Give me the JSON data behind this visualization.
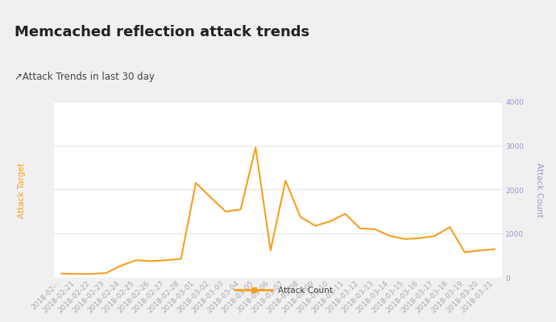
{
  "title": "Memcached reflection attack trends",
  "subtitle": "↗Attack Trends in last 30 day",
  "legend_label": "Attack Count",
  "left_ylabel": "Attack Target",
  "right_ylabel": "Attack Count",
  "line_color": "#f5a020",
  "background_color": "#f0f0f0",
  "header_background": "#f0f0f0",
  "plot_background": "#ffffff",
  "subtitle_background": "#ffffff",
  "right_axis_color": "#9999cc",
  "left_axis_color": "#f5a020",
  "dates": [
    "2018-02-··",
    "2018-02-21",
    "2018-02-22",
    "2018-02-23",
    "2018-02-24",
    "2018-02-25",
    "2018-02-26",
    "2018-02-27",
    "2018-02-28",
    "2018-03-01",
    "2018-03-02",
    "2018-03-03",
    "2018-03-04",
    "2018-03-05",
    "2018-03-06",
    "2018-03-07",
    "2018-03-08",
    "2018-03-09",
    "2018-03-10",
    "2018-03-11",
    "2018-03-12",
    "2018-03-13",
    "2018-03-14",
    "2018-03-15",
    "2018-03-16",
    "2018-03-17",
    "2018-03-18",
    "2018-03-19",
    "2018-03-20",
    "2018-03-21"
  ],
  "dates_display": [
    "2018-02-··",
    "2018-02-21",
    "2018-02-22",
    "2018-02-23",
    "2018-02-24",
    "2018-02-25",
    "2018-02-26",
    "2018-02-27",
    "2018-02-28",
    "2018-03-01",
    "2018-03-02",
    "2018-03-03",
    "2018-03-04",
    "2018-03-05",
    "2018-03-06",
    "2018-03-07",
    "2018-03-08",
    "2018-03-09",
    "2018-03-10",
    "2018-03-11",
    "2018-03-12",
    "2018-03-13",
    "2018-03-14",
    "2018-03-15",
    "2018-03-16",
    "2018-03-17",
    "2018-03-18",
    "2018-03-19",
    "2018-03-20",
    "2018-03-21"
  ],
  "values": [
    100,
    90,
    90,
    110,
    280,
    400,
    380,
    400,
    430,
    2150,
    1820,
    1500,
    1550,
    2950,
    620,
    2200,
    1380,
    1180,
    1280,
    1450,
    1120,
    1100,
    950,
    880,
    900,
    950,
    1150,
    580,
    620,
    650
  ],
  "ylim_right": [
    0,
    4000
  ],
  "yticks_right": [
    0,
    1000,
    2000,
    3000,
    4000
  ],
  "grid_color": "#e5e5e5",
  "title_fontsize": 13,
  "subtitle_fontsize": 8.5,
  "tick_fontsize": 6.5,
  "label_fontsize": 7.5
}
